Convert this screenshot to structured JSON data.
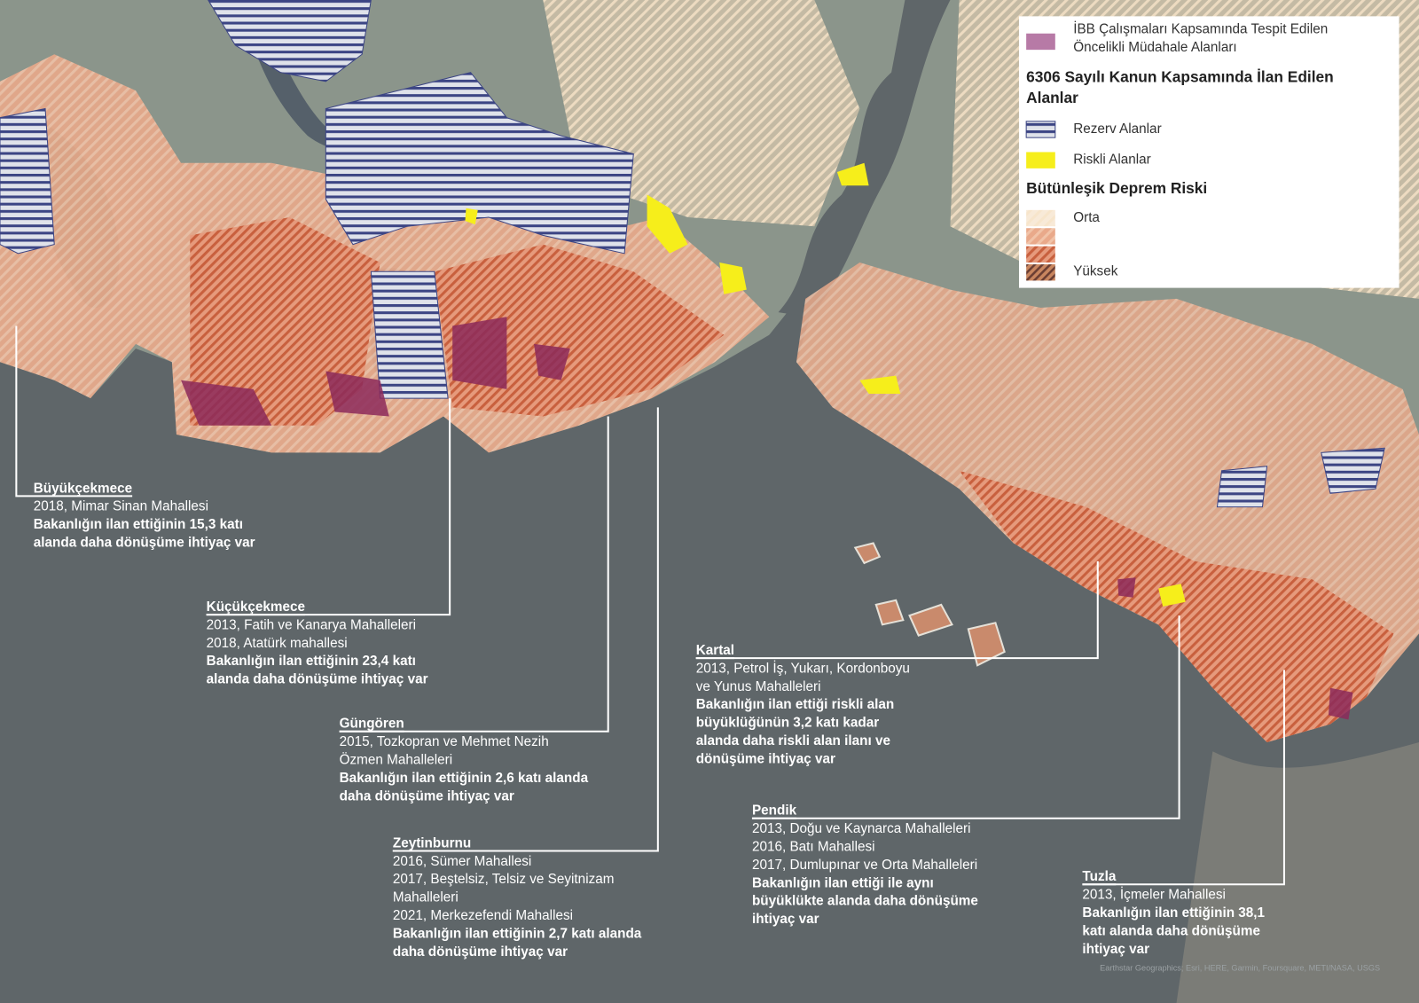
{
  "legend": {
    "priority_area": [
      "İBB Çalışmaları Kapsamında Tespit Edilen",
      "Öncelikli Müdahale Alanları"
    ],
    "law_heading": [
      "6306 Sayılı Kanun Kapsamında İlan Edilen",
      "Alanlar"
    ],
    "reserve_area": "Rezerv Alanlar",
    "risky_area": "Riskli Alanlar",
    "risk_heading": "Bütünleşik Deprem Riski",
    "risk_medium": "Orta",
    "risk_high": "Yüksek"
  },
  "annotations": [
    {
      "district": "Büyükçekmece",
      "lines": [
        "2018, Mimar Sinan Mahallesi"
      ],
      "note": [
        "Bakanlığın ilan ettiğinin 15,3 katı",
        "alanda daha dönüşüme ihtiyaç var"
      ]
    },
    {
      "district": "Küçükçekmece",
      "lines": [
        "2013, Fatih ve Kanarya Mahalleleri",
        "2018, Atatürk mahallesi"
      ],
      "note": [
        "Bakanlığın ilan ettiğinin 23,4 katı",
        "alanda daha dönüşüme ihtiyaç var"
      ]
    },
    {
      "district": "Güngören",
      "lines": [
        "2015, Tozkopran ve Mehmet Nezih",
        "Özmen Mahalleleri"
      ],
      "note": [
        "Bakanlığın ilan ettiğinin 2,6 katı alanda",
        "daha dönüşüme ihtiyaç var"
      ]
    },
    {
      "district": "Zeytinburnu",
      "lines": [
        "2016, Sümer Mahallesi",
        "2017, Beştelsiz, Telsiz ve Seyitnizam",
        "Mahalleleri",
        "2021, Merkezefendi Mahallesi"
      ],
      "note": [
        "Bakanlığın ilan ettiğinin 2,7 katı alanda",
        "daha dönüşüme ihtiyaç var"
      ]
    },
    {
      "district": "Kartal",
      "lines": [
        "2013, Petrol İş, Yukarı, Kordonboyu",
        "ve Yunus Mahalleleri"
      ],
      "note": [
        "Bakanlığın ilan ettiği riskli alan",
        "büyüklüğünün 3,2 katı kadar",
        "alanda daha riskli alan ilanı ve",
        "dönüşüme ihtiyaç var"
      ]
    },
    {
      "district": "Pendik",
      "lines": [
        "2013, Doğu ve Kaynarca Mahalleleri",
        "2016, Batı Mahallesi",
        "2017, Dumlupınar ve Orta Mahalleleri"
      ],
      "note": [
        "Bakanlığın ilan ettiği ile aynı",
        "büyüklükte alanda daha dönüşüme",
        "ihtiyaç var"
      ]
    },
    {
      "district": "Tuzla",
      "lines": [
        "2013, İçmeler Mahallesi"
      ],
      "note": [
        "Bakanlığın ilan ettiğinin 38,1",
        "katı alanda daha dönüşüme",
        "ihtiyaç var"
      ]
    }
  ],
  "attribution": "Earthstar Geographics; Esri, HERE, Garmin, Foursquare, METI/NASA, USGS"
}
